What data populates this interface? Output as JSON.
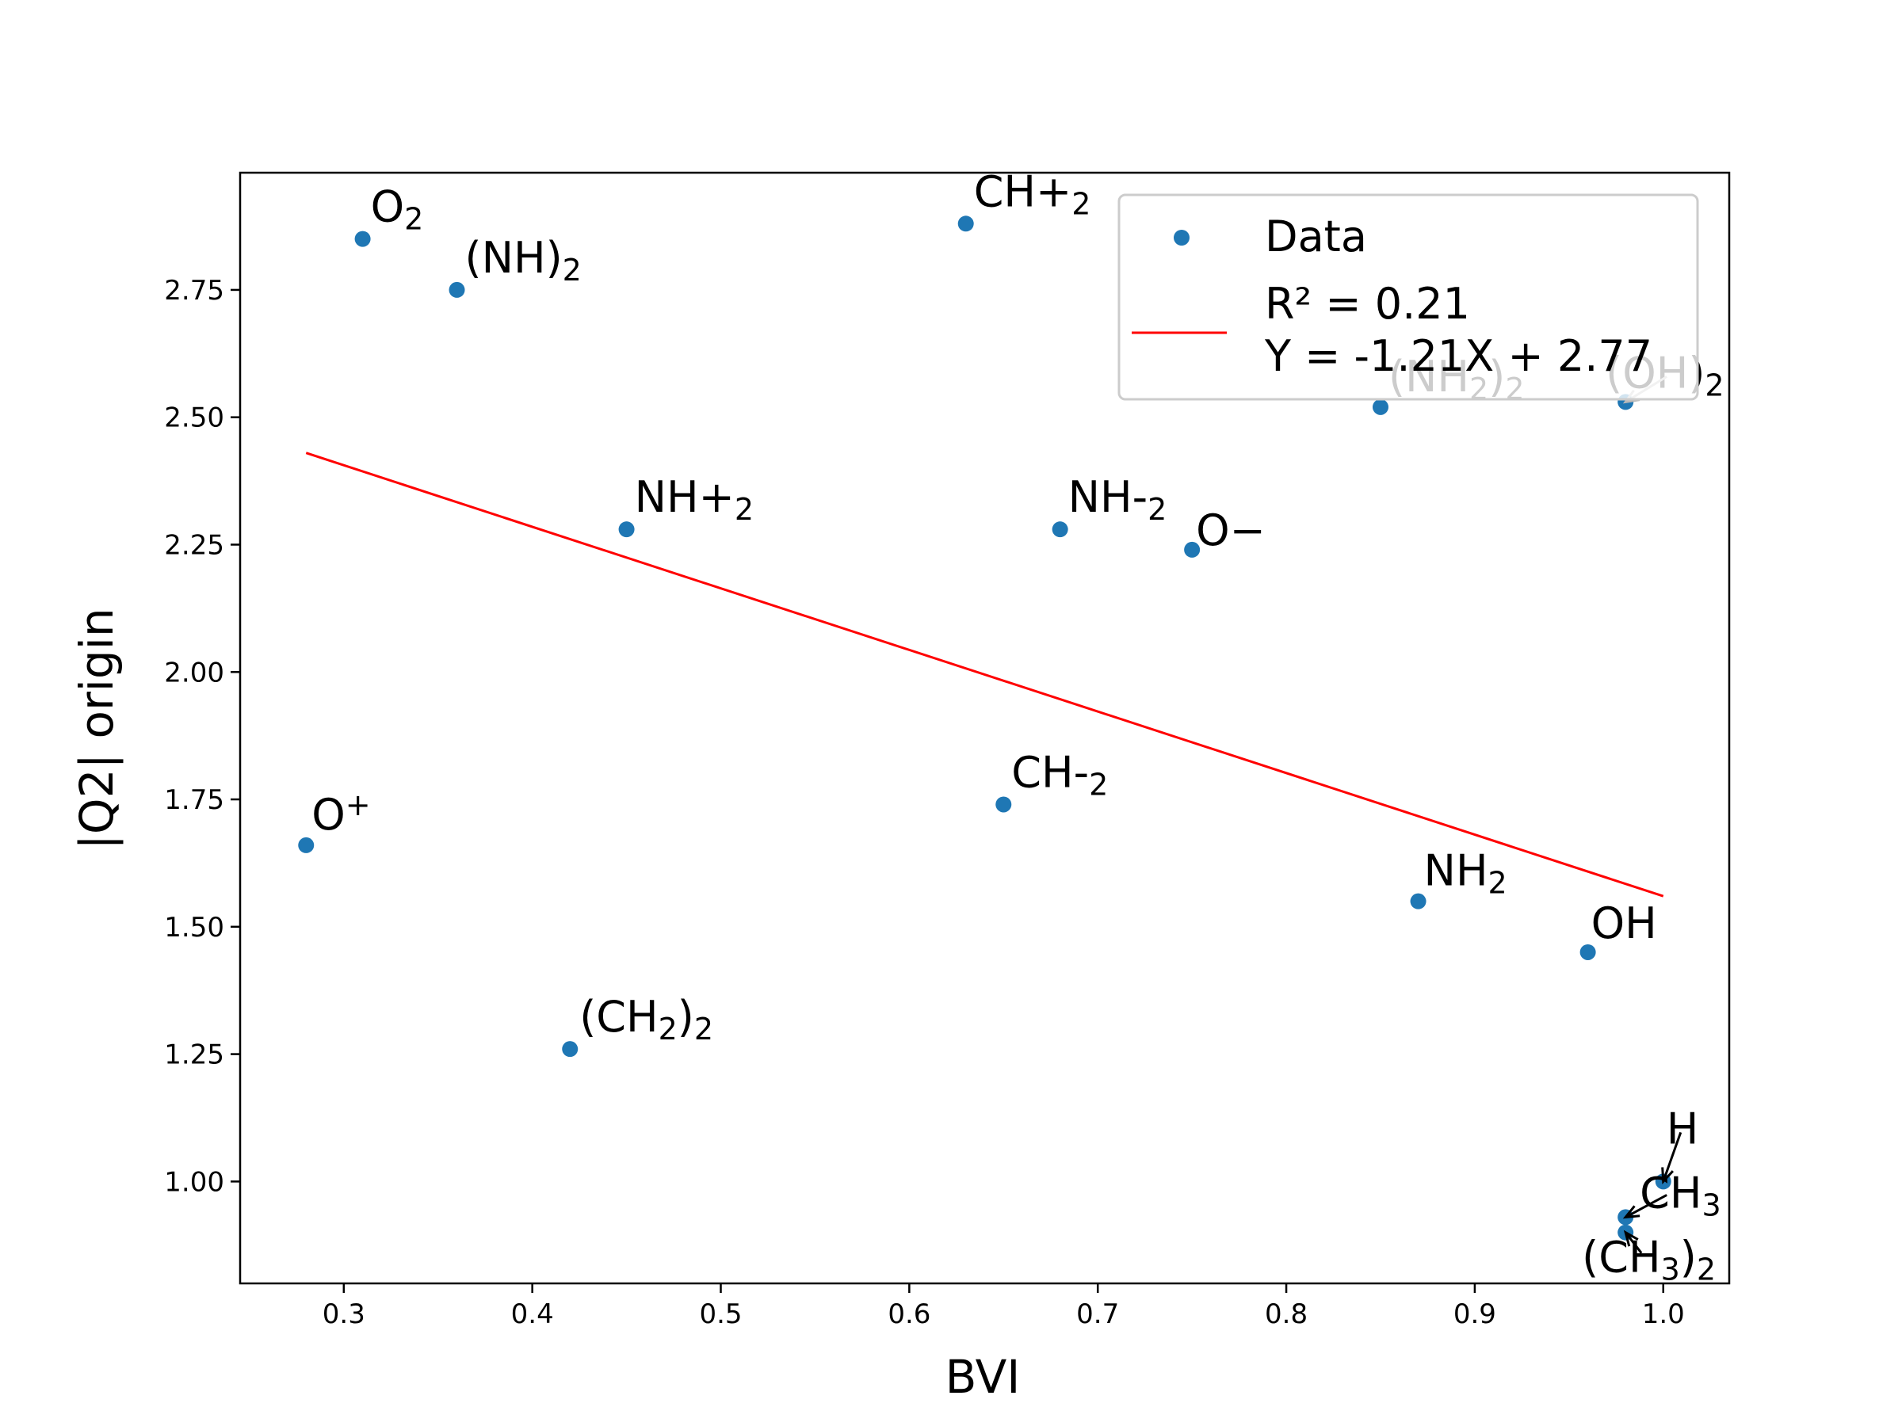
{
  "chart_data": {
    "type": "scatter",
    "xlabel": "BVI",
    "ylabel": "|Q2| origin",
    "xlim": [
      0.245,
      1.035
    ],
    "ylim": [
      0.8,
      2.98
    ],
    "xticks": [
      0.3,
      0.4,
      0.5,
      0.6,
      0.7,
      0.8,
      0.9,
      1.0
    ],
    "xtick_labels": [
      "0.3",
      "0.4",
      "0.5",
      "0.6",
      "0.7",
      "0.8",
      "0.9",
      "1.0"
    ],
    "yticks": [
      1.0,
      1.25,
      1.5,
      1.75,
      2.0,
      2.25,
      2.5,
      2.75
    ],
    "ytick_labels": [
      "1.00",
      "1.25",
      "1.50",
      "1.75",
      "2.00",
      "2.25",
      "2.50",
      "2.75"
    ],
    "grid": false,
    "legend_position": "top-right",
    "colors": {
      "points": "#1f77b4",
      "fit_line": "#ff0000"
    },
    "series": [
      {
        "name": "Data",
        "points": [
          {
            "label": "O",
            "sub": "2",
            "x": 0.31,
            "y": 2.85
          },
          {
            "label": "(NH)",
            "sub": "2",
            "x": 0.36,
            "y": 2.75
          },
          {
            "label": "CH+",
            "sub": "2",
            "x": 0.63,
            "y": 2.88
          },
          {
            "label": "(NH",
            "sub": "2",
            "after": ")",
            "sub2": "2",
            "x": 0.85,
            "y": 2.52,
            "faded": true
          },
          {
            "label": "(OH)",
            "sub": "2",
            "x": 0.98,
            "y": 2.53,
            "faded": true
          },
          {
            "label": "NH+",
            "sub": "2",
            "x": 0.45,
            "y": 2.28
          },
          {
            "label": "NH-",
            "sub": "2",
            "x": 0.68,
            "y": 2.28
          },
          {
            "label": "O−",
            "x": 0.75,
            "y": 2.24
          },
          {
            "label": "O",
            "sup": "+",
            "x": 0.28,
            "y": 1.66
          },
          {
            "label": "CH-",
            "sub": "2",
            "x": 0.65,
            "y": 1.74
          },
          {
            "label": "NH",
            "sub": "2",
            "x": 0.87,
            "y": 1.55
          },
          {
            "label": "OH",
            "x": 0.96,
            "y": 1.45
          },
          {
            "label": "(CH",
            "sub": "2",
            "after": ")",
            "sub2": "2",
            "x": 0.42,
            "y": 1.26
          },
          {
            "label": "H",
            "x": 1.0,
            "y": 1.0
          },
          {
            "label": "CH",
            "sub": "3",
            "x": 0.98,
            "y": 0.93
          },
          {
            "label": "(CH",
            "sub": "3",
            "after": ")",
            "sub2": "2",
            "x": 0.98,
            "y": 0.9
          }
        ]
      },
      {
        "name": "R² = 0.21",
        "name2": "Y = -1.21X + 2.77",
        "type": "line",
        "slope": -1.21,
        "intercept": 2.77,
        "x": [
          0.28,
          1.0
        ],
        "y": [
          2.43,
          1.56
        ]
      }
    ],
    "legend": {
      "data_label": "Data",
      "fit_label_line1": "R² = 0.21",
      "fit_label_line2": "Y = -1.21X + 2.77"
    }
  }
}
